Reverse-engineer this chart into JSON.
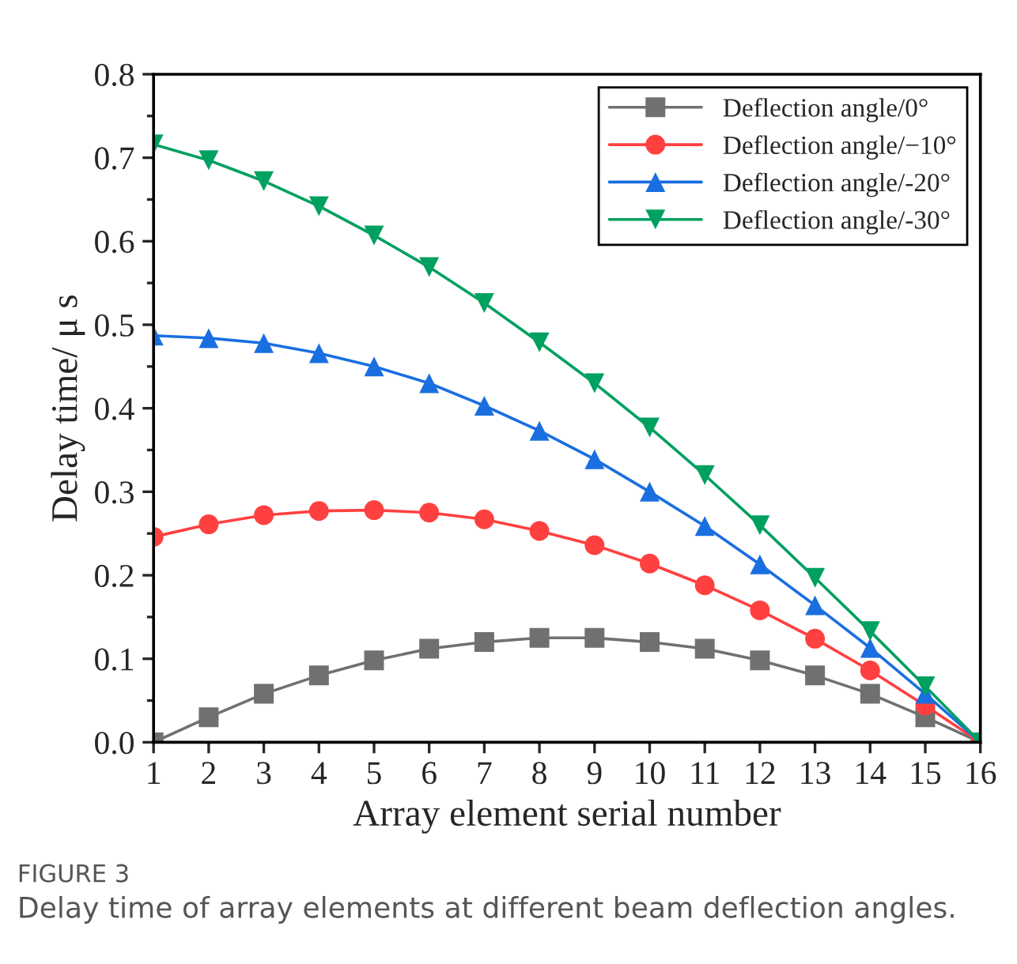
{
  "chart_data": {
    "type": "line",
    "xlabel": "Array element serial number",
    "ylabel": "Delay time/ μ s",
    "x": [
      1,
      2,
      3,
      4,
      5,
      6,
      7,
      8,
      9,
      10,
      11,
      12,
      13,
      14,
      15,
      16
    ],
    "series": [
      {
        "name": "Deflection angle/0°",
        "color": "#707070",
        "marker": "square",
        "values": [
          0,
          0.03,
          0.058,
          0.08,
          0.098,
          0.112,
          0.12,
          0.125,
          0.125,
          0.12,
          0.112,
          0.098,
          0.08,
          0.058,
          0.03,
          0
        ]
      },
      {
        "name": "Deflection angle/−10°",
        "color": "#ff4040",
        "marker": "circle",
        "values": [
          0.246,
          0.261,
          0.272,
          0.277,
          0.278,
          0.275,
          0.267,
          0.253,
          0.236,
          0.214,
          0.188,
          0.158,
          0.124,
          0.086,
          0.044,
          0
        ]
      },
      {
        "name": "Deflection angle/-20°",
        "color": "#1a6fe0",
        "marker": "triangle",
        "values": [
          0.487,
          0.484,
          0.478,
          0.466,
          0.45,
          0.43,
          0.403,
          0.373,
          0.339,
          0.3,
          0.259,
          0.213,
          0.164,
          0.113,
          0.058,
          0
        ]
      },
      {
        "name": "Deflection angle/-30°",
        "color": "#00a060",
        "marker": "triangle_down",
        "values": [
          0.716,
          0.697,
          0.672,
          0.642,
          0.607,
          0.569,
          0.526,
          0.479,
          0.43,
          0.377,
          0.32,
          0.26,
          0.197,
          0.133,
          0.067,
          0
        ]
      }
    ],
    "xlim": [
      1,
      16
    ],
    "xticks": [
      1,
      2,
      3,
      4,
      5,
      6,
      7,
      8,
      9,
      10,
      11,
      12,
      13,
      14,
      15,
      16
    ],
    "ylim": [
      0,
      0.8
    ],
    "yticks": [
      {
        "value": 0,
        "label": "0.0"
      },
      0.1,
      0.2,
      0.3,
      0.4,
      0.5,
      0.6,
      0.7,
      0.8
    ],
    "grid": false,
    "legend": "top right",
    "line_style": "solid",
    "annotations": [
      "FIGURE 3",
      "Delay time of array elements at different beam deflection angles."
    ]
  }
}
